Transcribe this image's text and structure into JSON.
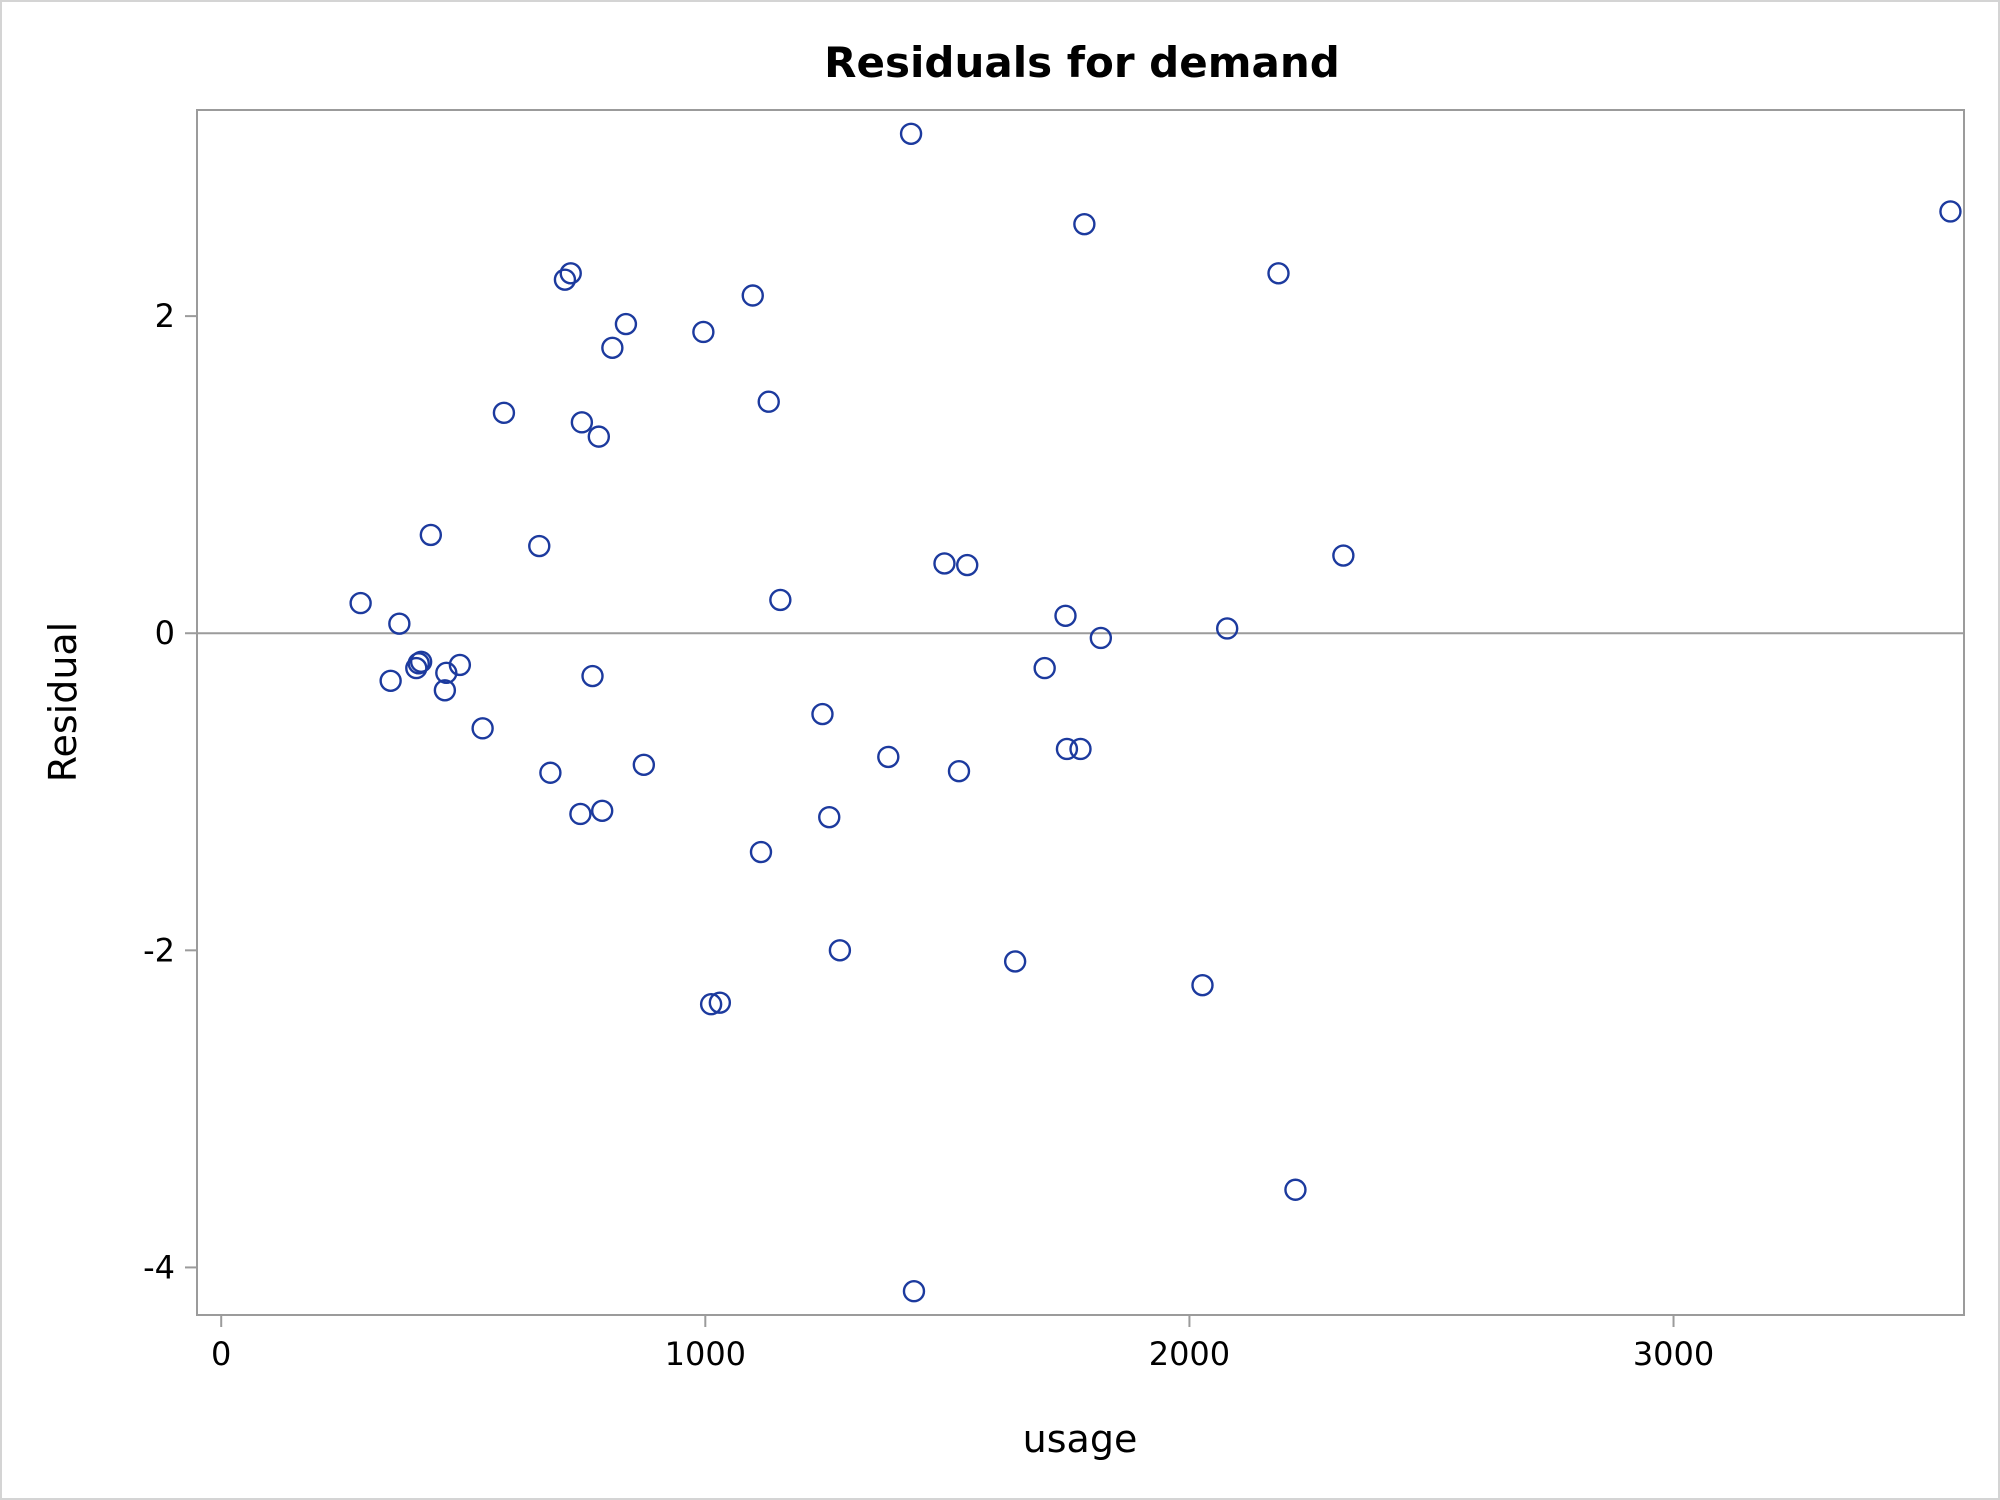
{
  "chart_data": {
    "type": "scatter",
    "title": "Residuals for demand",
    "xlabel": "usage",
    "ylabel": "Residual",
    "xlim": [
      -50,
      3600
    ],
    "ylim": [
      -4.3,
      3.3
    ],
    "xticks": [
      0,
      1000,
      2000,
      3000
    ],
    "yticks": [
      -4,
      -2,
      0,
      2
    ],
    "reference_line_y": 0,
    "grid": false,
    "legend": "none",
    "marker": "open-circle",
    "marker_color": "#1c3a9e",
    "series": [
      {
        "points": [
          [
            288,
            0.19
          ],
          [
            368,
            0.06
          ],
          [
            350,
            -0.3
          ],
          [
            403,
            -0.22
          ],
          [
            408,
            -0.19
          ],
          [
            413,
            -0.18
          ],
          [
            433,
            0.62
          ],
          [
            462,
            -0.36
          ],
          [
            465,
            -0.25
          ],
          [
            493,
            -0.2
          ],
          [
            540,
            -0.6
          ],
          [
            584,
            1.39
          ],
          [
            657,
            0.55
          ],
          [
            680,
            -0.88
          ],
          [
            710,
            2.23
          ],
          [
            722,
            2.27
          ],
          [
            742,
            -1.14
          ],
          [
            745,
            1.33
          ],
          [
            767,
            -0.27
          ],
          [
            780,
            1.24
          ],
          [
            787,
            -1.12
          ],
          [
            808,
            1.8
          ],
          [
            836,
            1.95
          ],
          [
            873,
            -0.83
          ],
          [
            996,
            1.9
          ],
          [
            1012,
            -2.34
          ],
          [
            1030,
            -2.33
          ],
          [
            1098,
            2.13
          ],
          [
            1115,
            -1.38
          ],
          [
            1131,
            1.46
          ],
          [
            1155,
            0.21
          ],
          [
            1242,
            -0.51
          ],
          [
            1256,
            -1.16
          ],
          [
            1278,
            -2.0
          ],
          [
            1378,
            -0.78
          ],
          [
            1425,
            3.15
          ],
          [
            1431,
            -4.15
          ],
          [
            1494,
            0.44
          ],
          [
            1524,
            -0.87
          ],
          [
            1541,
            0.43
          ],
          [
            1640,
            -2.07
          ],
          [
            1701,
            -0.22
          ],
          [
            1744,
            0.11
          ],
          [
            1747,
            -0.73
          ],
          [
            1775,
            -0.73
          ],
          [
            1783,
            2.58
          ],
          [
            1817,
            -0.03
          ],
          [
            2027,
            -2.22
          ],
          [
            2078,
            0.03
          ],
          [
            2184,
            2.27
          ],
          [
            2219,
            -3.51
          ],
          [
            2318,
            0.49
          ],
          [
            3572,
            2.66
          ]
        ]
      }
    ]
  }
}
